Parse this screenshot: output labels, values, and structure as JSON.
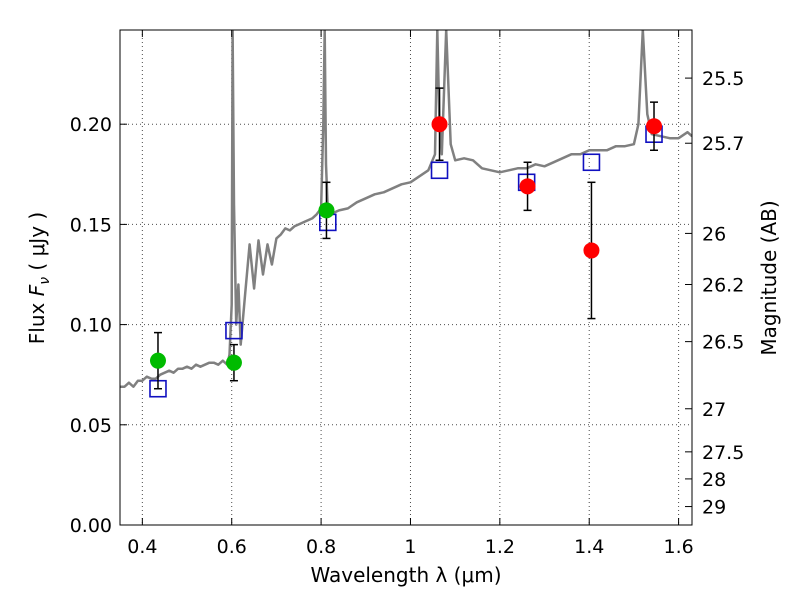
{
  "chart_data": {
    "type": "scatter",
    "xlabel": "Wavelength  λ (μm)",
    "ylabel": "Flux  F_ν  ( μJy )",
    "y2label": "Magnitude (AB)",
    "xlim": [
      0.35,
      1.63
    ],
    "ylim": [
      0.0,
      0.247
    ],
    "grid": true,
    "x_ticks": [
      {
        "value": 0.4,
        "label": "0.4"
      },
      {
        "value": 0.6,
        "label": "0.6"
      },
      {
        "value": 0.8,
        "label": "0.8"
      },
      {
        "value": 1.0,
        "label": "1"
      },
      {
        "value": 1.2,
        "label": "1.2"
      },
      {
        "value": 1.4,
        "label": "1.4"
      },
      {
        "value": 1.6,
        "label": "1.6"
      }
    ],
    "y_ticks": [
      {
        "value": 0.0,
        "label": "0.00"
      },
      {
        "value": 0.05,
        "label": "0.05"
      },
      {
        "value": 0.1,
        "label": "0.10"
      },
      {
        "value": 0.15,
        "label": "0.15"
      },
      {
        "value": 0.2,
        "label": "0.20"
      }
    ],
    "mag_ticks": [
      {
        "value": 0.223,
        "label": "25.5"
      },
      {
        "value": 0.1905,
        "label": "25.7"
      },
      {
        "value": 0.1455,
        "label": "26"
      },
      {
        "value": 0.12,
        "label": "26.2"
      },
      {
        "value": 0.0915,
        "label": "26.5"
      },
      {
        "value": 0.058,
        "label": "27"
      },
      {
        "value": 0.0365,
        "label": "27.5"
      },
      {
        "value": 0.023,
        "label": "28"
      },
      {
        "value": 0.0092,
        "label": "29"
      }
    ],
    "series": [
      {
        "kind": "line",
        "color": "#808080",
        "x": [
          0.35,
          0.36,
          0.37,
          0.38,
          0.39,
          0.4,
          0.41,
          0.42,
          0.43,
          0.44,
          0.45,
          0.46,
          0.47,
          0.48,
          0.49,
          0.5,
          0.51,
          0.52,
          0.53,
          0.54,
          0.55,
          0.56,
          0.57,
          0.58,
          0.59,
          0.595,
          0.6,
          0.602,
          0.605,
          0.61,
          0.615,
          0.62,
          0.63,
          0.64,
          0.65,
          0.66,
          0.67,
          0.68,
          0.69,
          0.7,
          0.71,
          0.72,
          0.73,
          0.74,
          0.75,
          0.76,
          0.77,
          0.78,
          0.79,
          0.8,
          0.805,
          0.808,
          0.811,
          0.815,
          0.82,
          0.84,
          0.86,
          0.88,
          0.9,
          0.92,
          0.94,
          0.96,
          0.98,
          1.0,
          1.02,
          1.04,
          1.055,
          1.06,
          1.065,
          1.07,
          1.08,
          1.09,
          1.1,
          1.12,
          1.14,
          1.16,
          1.18,
          1.2,
          1.22,
          1.24,
          1.26,
          1.28,
          1.3,
          1.32,
          1.34,
          1.36,
          1.38,
          1.4,
          1.42,
          1.44,
          1.46,
          1.48,
          1.5,
          1.51,
          1.52,
          1.53,
          1.54,
          1.56,
          1.58,
          1.6,
          1.62,
          1.63
        ],
        "y": [
          0.069,
          0.069,
          0.071,
          0.069,
          0.072,
          0.072,
          0.074,
          0.073,
          0.073,
          0.075,
          0.076,
          0.077,
          0.076,
          0.078,
          0.078,
          0.079,
          0.078,
          0.08,
          0.079,
          0.08,
          0.081,
          0.081,
          0.08,
          0.082,
          0.08,
          0.085,
          0.11,
          0.247,
          0.16,
          0.1,
          0.12,
          0.09,
          0.115,
          0.14,
          0.118,
          0.142,
          0.125,
          0.14,
          0.13,
          0.143,
          0.145,
          0.148,
          0.147,
          0.149,
          0.15,
          0.151,
          0.152,
          0.153,
          0.155,
          0.158,
          0.2,
          0.247,
          0.18,
          0.157,
          0.155,
          0.157,
          0.158,
          0.161,
          0.163,
          0.165,
          0.166,
          0.168,
          0.17,
          0.171,
          0.174,
          0.177,
          0.185,
          0.247,
          0.2,
          0.185,
          0.247,
          0.19,
          0.182,
          0.183,
          0.182,
          0.178,
          0.177,
          0.176,
          0.177,
          0.178,
          0.178,
          0.18,
          0.179,
          0.181,
          0.183,
          0.185,
          0.185,
          0.187,
          0.187,
          0.187,
          0.189,
          0.189,
          0.19,
          0.2,
          0.247,
          0.205,
          0.195,
          0.194,
          0.193,
          0.193,
          0.196,
          0.194
        ]
      },
      {
        "kind": "squares",
        "color": "#1010c0",
        "x": [
          0.435,
          0.605,
          0.815,
          1.065,
          1.26,
          1.405,
          1.545
        ],
        "y": [
          0.068,
          0.097,
          0.151,
          0.177,
          0.171,
          0.181,
          0.195
        ]
      },
      {
        "kind": "circles",
        "color": "#00bb00",
        "x": [
          0.435,
          0.605,
          0.812
        ],
        "y": [
          0.082,
          0.081,
          0.157
        ],
        "yerr": [
          0.014,
          0.009,
          0.014
        ]
      },
      {
        "kind": "circles",
        "color": "#ff0000",
        "x": [
          1.065,
          1.262,
          1.405,
          1.545
        ],
        "y": [
          0.2,
          0.169,
          0.137,
          0.199
        ],
        "yerr": [
          0.018,
          0.012,
          0.034,
          0.012
        ]
      }
    ]
  }
}
